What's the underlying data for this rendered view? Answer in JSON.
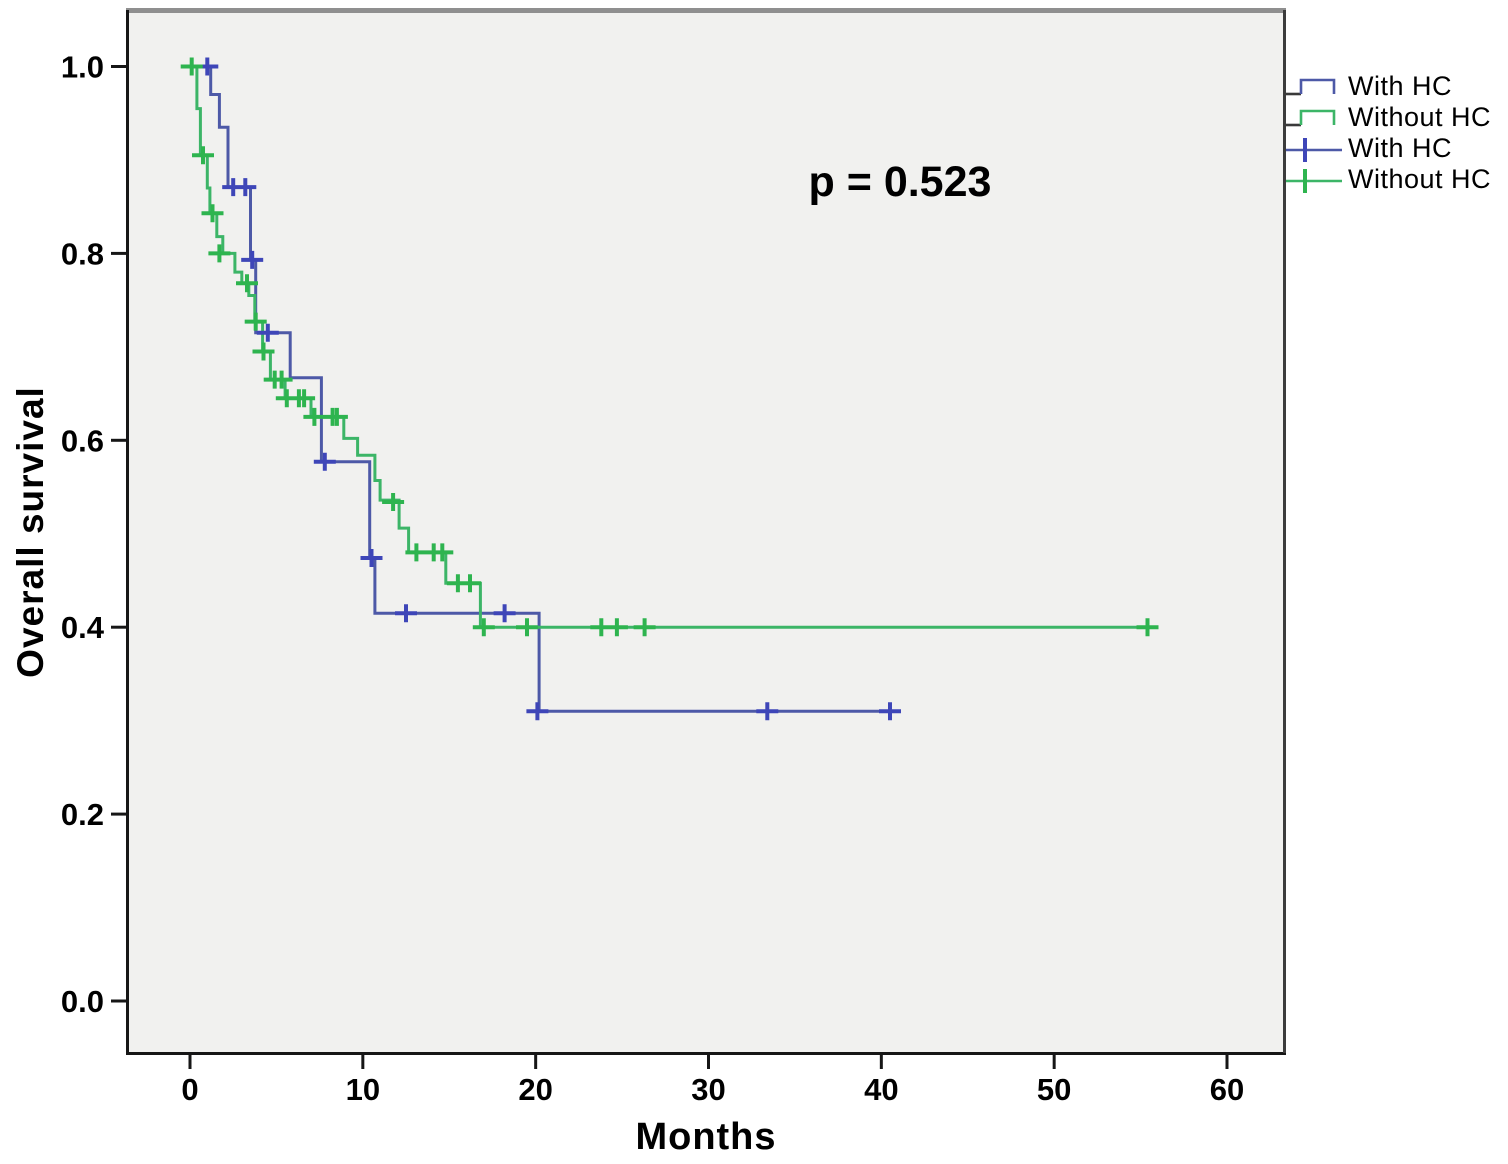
{
  "figure": {
    "background": "#ffffff",
    "panel_bg": "#f1f1ef",
    "panel_top_border": "#8f8f8f",
    "panel_side_border": "#3c3c3c",
    "axis_color": "#161616",
    "text_color": "#000000"
  },
  "chart_data": {
    "type": "line",
    "subtype": "kaplan-meier-step-survival",
    "title": "",
    "xlabel": "Months",
    "ylabel": "Overall survival",
    "annotation": "p = 0.523",
    "grid": false,
    "legend_position": "top-right-outside",
    "xlim": [
      -3.6,
      63.3
    ],
    "ylim": [
      -0.07,
      1.07
    ],
    "x_ticks": [
      0,
      10,
      20,
      30,
      40,
      50,
      60
    ],
    "y_ticks": [
      "0.0",
      "0.2",
      "0.4",
      "0.6",
      "0.8",
      "1.0"
    ],
    "y_tick_values": [
      0.0,
      0.2,
      0.4,
      0.6,
      0.8,
      1.0
    ],
    "series": [
      {
        "name": "With HC",
        "color": "#4d59a7",
        "censor_color": "#3e46b8",
        "steps": [
          [
            0,
            1.0
          ],
          [
            1.2,
            0.97
          ],
          [
            1.7,
            0.935
          ],
          [
            2.2,
            0.871
          ],
          [
            3.5,
            0.793
          ],
          [
            3.8,
            0.715
          ],
          [
            5.8,
            0.667
          ],
          [
            7.6,
            0.577
          ],
          [
            10.4,
            0.474
          ],
          [
            10.7,
            0.415
          ],
          [
            20.2,
            0.31
          ]
        ],
        "end_time": 40.8,
        "censors": [
          [
            1.0,
            1.0
          ],
          [
            2.5,
            0.871
          ],
          [
            3.2,
            0.871
          ],
          [
            3.6,
            0.793
          ],
          [
            4.5,
            0.715
          ],
          [
            7.8,
            0.577
          ],
          [
            10.5,
            0.474
          ],
          [
            12.5,
            0.415
          ],
          [
            18.2,
            0.415
          ],
          [
            20.1,
            0.31
          ],
          [
            33.4,
            0.31
          ],
          [
            40.5,
            0.31
          ]
        ]
      },
      {
        "name": "Without HC",
        "color": "#3cb567",
        "censor_color": "#2eb44f",
        "steps": [
          [
            0,
            1.0
          ],
          [
            0.4,
            0.955
          ],
          [
            0.6,
            0.905
          ],
          [
            1.0,
            0.87
          ],
          [
            1.15,
            0.843
          ],
          [
            1.55,
            0.818
          ],
          [
            1.9,
            0.8
          ],
          [
            2.6,
            0.78
          ],
          [
            3.0,
            0.768
          ],
          [
            3.4,
            0.755
          ],
          [
            3.75,
            0.727
          ],
          [
            4.2,
            0.695
          ],
          [
            4.65,
            0.665
          ],
          [
            5.5,
            0.645
          ],
          [
            7.0,
            0.625
          ],
          [
            8.9,
            0.602
          ],
          [
            9.7,
            0.584
          ],
          [
            10.7,
            0.557
          ],
          [
            11.0,
            0.536
          ],
          [
            12.1,
            0.506
          ],
          [
            12.65,
            0.48
          ],
          [
            14.8,
            0.447
          ],
          [
            16.8,
            0.4
          ]
        ],
        "end_time": 55.8,
        "censors": [
          [
            0.1,
            1.0
          ],
          [
            0.75,
            0.905
          ],
          [
            1.3,
            0.843
          ],
          [
            1.7,
            0.8
          ],
          [
            3.3,
            0.768
          ],
          [
            3.8,
            0.727
          ],
          [
            4.25,
            0.695
          ],
          [
            4.9,
            0.665
          ],
          [
            5.3,
            0.665
          ],
          [
            5.6,
            0.645
          ],
          [
            6.3,
            0.645
          ],
          [
            6.6,
            0.645
          ],
          [
            7.2,
            0.625
          ],
          [
            8.25,
            0.625
          ],
          [
            8.5,
            0.625
          ],
          [
            11.75,
            0.534
          ],
          [
            13.1,
            0.48
          ],
          [
            14.1,
            0.48
          ],
          [
            14.6,
            0.48
          ],
          [
            15.5,
            0.447
          ],
          [
            16.2,
            0.447
          ],
          [
            17.0,
            0.4
          ],
          [
            19.5,
            0.4
          ],
          [
            23.8,
            0.4
          ],
          [
            24.7,
            0.4
          ],
          [
            26.3,
            0.4
          ],
          [
            55.4,
            0.4
          ]
        ]
      }
    ],
    "legend": [
      {
        "label": "With HC",
        "type": "line",
        "series": 0
      },
      {
        "label": "Without HC",
        "type": "line",
        "series": 1
      },
      {
        "label": "With HC",
        "type": "censor",
        "series": 0
      },
      {
        "label": "Without HC",
        "type": "censor",
        "series": 1
      }
    ]
  }
}
